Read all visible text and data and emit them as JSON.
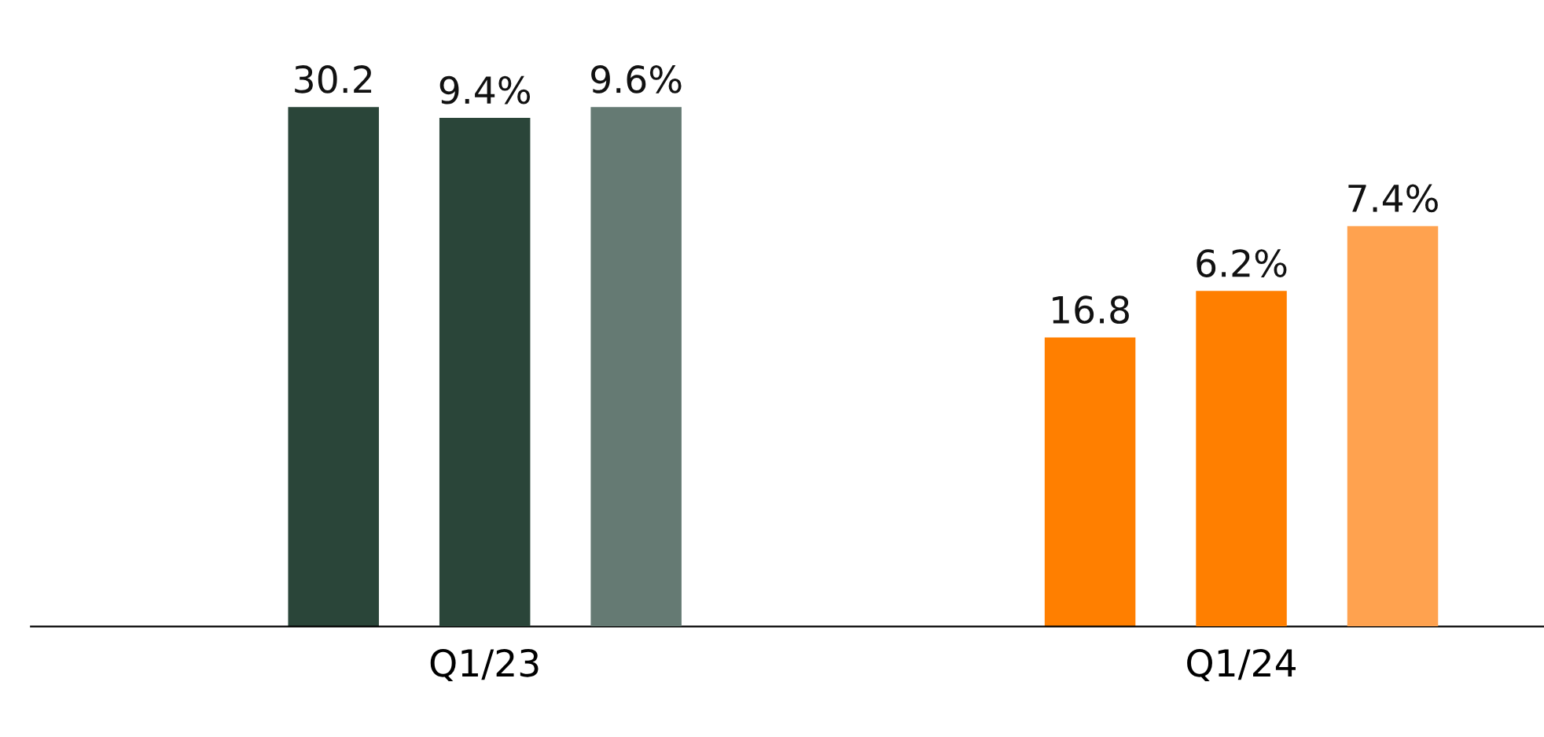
{
  "chart_data": {
    "type": "bar",
    "categories": [
      "Q1/23",
      "Q1/24"
    ],
    "series": [
      {
        "colors": [
          "#2a4539",
          "#ff7f00"
        ],
        "values": [
          30.2,
          16.8
        ],
        "value_labels": [
          "30.2",
          "16.8"
        ]
      },
      {
        "colors": [
          "#2a4539",
          "#ff7f00"
        ],
        "values": [
          9.4,
          6.2
        ],
        "value_labels": [
          "9.4%",
          "6.2%"
        ],
        "axis": "y2"
      },
      {
        "colors": [
          "#657a73",
          "#ffa24f"
        ],
        "values": [
          9.6,
          7.4
        ],
        "value_labels": [
          "9.6%",
          "7.4%"
        ],
        "axis": "y2"
      }
    ],
    "tick_labels": "x",
    "grid": false,
    "legend": false
  }
}
